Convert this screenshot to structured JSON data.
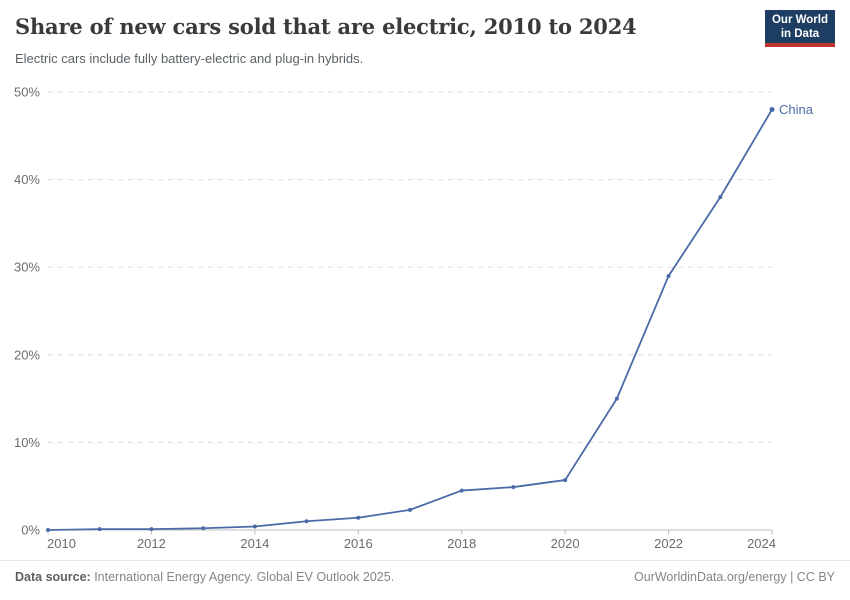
{
  "chart_data": {
    "type": "line",
    "title": "Share of new cars sold that are electric, 2010 to 2024",
    "subtitle": "Electric cars include fully battery-electric and plug-in hybrids.",
    "x": [
      2010,
      2011,
      2012,
      2013,
      2014,
      2015,
      2016,
      2017,
      2018,
      2019,
      2020,
      2021,
      2022,
      2023,
      2024
    ],
    "series": [
      {
        "name": "China",
        "color": "#4a6ba8",
        "values": [
          0,
          0.1,
          0.1,
          0.2,
          0.4,
          1,
          1.4,
          2.3,
          4.5,
          4.9,
          5.7,
          15,
          29,
          38,
          48
        ]
      }
    ],
    "xlabel": "",
    "ylabel": "",
    "ylim": [
      0,
      50
    ],
    "yticks": [
      "0%",
      "10%",
      "20%",
      "30%",
      "40%",
      "50%"
    ],
    "ytick_values": [
      0,
      10,
      20,
      30,
      40,
      50
    ],
    "xticks": [
      2010,
      2012,
      2014,
      2016,
      2018,
      2020,
      2022,
      2024
    ],
    "grid": "horizontal-dashed",
    "legend": "line-end-label"
  },
  "logo": {
    "line1": "Our World",
    "line2": "in Data",
    "bg_color": "#1d3d63",
    "accent_color": "#c0362c"
  },
  "footer": {
    "source_label": "Data source:",
    "source_text": " International Energy Agency. Global EV Outlook 2025.",
    "link": "OurWorldinData.org/energy | CC BY"
  }
}
